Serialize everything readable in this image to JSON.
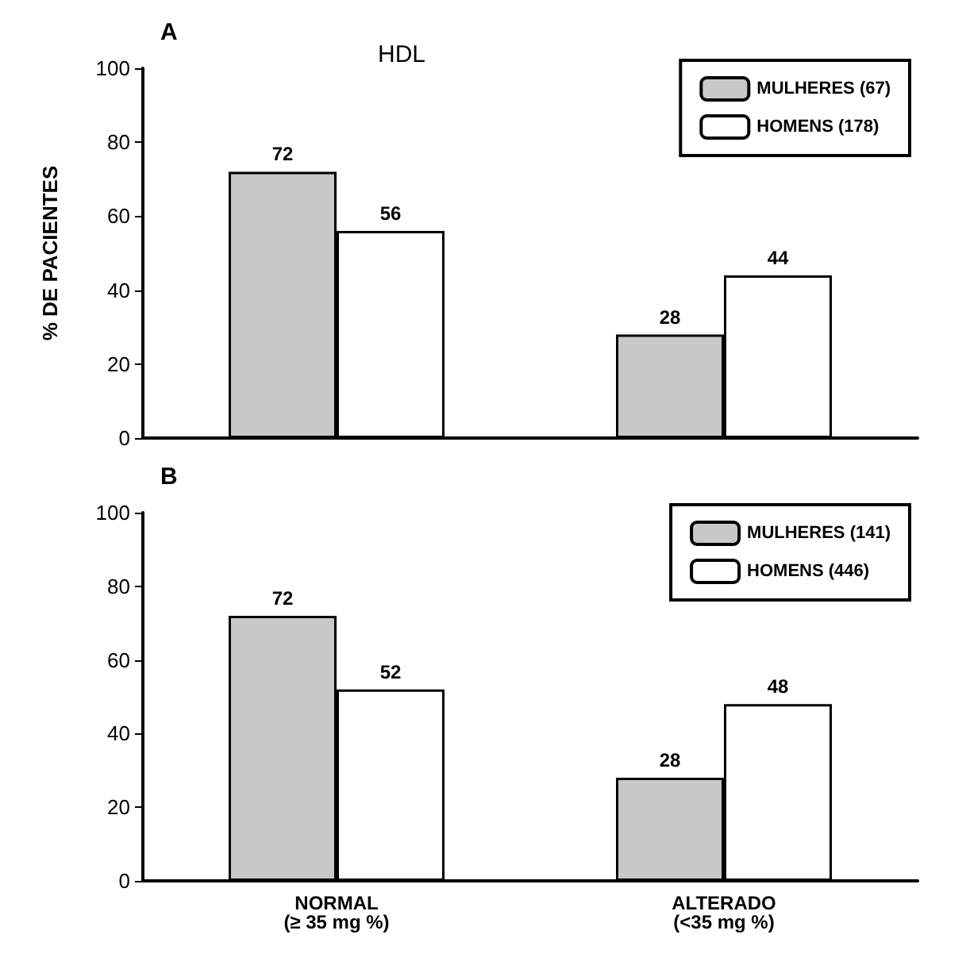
{
  "chart_data": [
    {
      "type": "bar",
      "title": "A",
      "subtitle": "HDL",
      "ylabel": "% DE PACIENTES",
      "categories": [
        null,
        null
      ],
      "tick_labels": "y",
      "series": [
        {
          "name": "MULHERES (67)",
          "color": "#c8c8c8",
          "values": [
            72,
            28
          ]
        },
        {
          "name": "HOMENS (178)",
          "color": "#ffffff",
          "values": [
            56,
            44
          ]
        }
      ],
      "ylim": [
        0,
        100
      ],
      "yticks": [
        0,
        20,
        40,
        60,
        80,
        100
      ],
      "data_labels": true,
      "grid": false,
      "legend": "top right"
    },
    {
      "type": "bar",
      "title": "B",
      "categories": [
        "NORMAL\n(≥ 35 mg %)",
        "ALTERADO\n(<35 mg %)"
      ],
      "series": [
        {
          "name": "MULHERES (141)",
          "color": "#c8c8c8",
          "values": [
            72,
            28
          ]
        },
        {
          "name": "HOMENS (446)",
          "color": "#ffffff",
          "values": [
            52,
            48
          ]
        }
      ],
      "ylim": [
        0,
        100
      ],
      "yticks": [
        0,
        20,
        40,
        60,
        80,
        100
      ],
      "data_labels": true,
      "grid": false,
      "legend": "top right"
    }
  ]
}
